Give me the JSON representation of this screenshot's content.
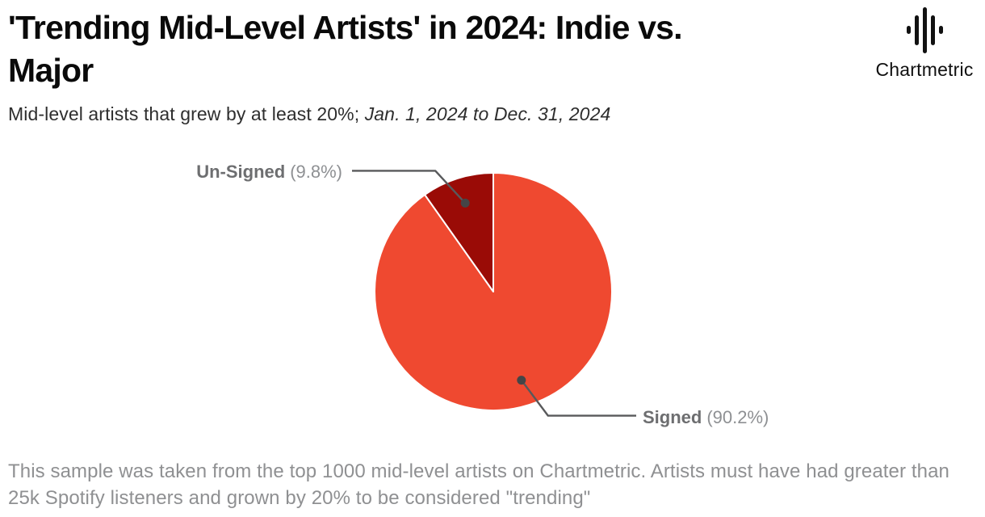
{
  "header": {
    "title_line1": "'Trending Mid-Level Artists' in 2024: Indie vs.",
    "title_line2": "Major",
    "brand": "Chartmetric"
  },
  "subtitle": {
    "plain": "Mid-level artists that grew by at least 20%; ",
    "italic": "Jan. 1, 2024 to Dec. 31, 2024"
  },
  "chart_data": {
    "type": "pie",
    "title": "'Trending Mid-Level Artists' in 2024: Indie vs. Major",
    "subtitle": "Mid-level artists that grew by at least 20%; Jan. 1, 2024 to Dec. 31, 2024",
    "slices": [
      {
        "label": "Signed",
        "value": 90.2,
        "display": "(90.2%)",
        "color": "#EF4930"
      },
      {
        "label": "Un-Signed",
        "value": 9.8,
        "display": "(9.8%)",
        "color": "#9A0B06"
      }
    ],
    "start_angle_deg": 0,
    "direction": "clockwise",
    "slice_border_color": "#FFFFFF",
    "legend_position": "callout-labels",
    "callout_line_color": "#58595B",
    "callout_dot_color": "#454547"
  },
  "footer": {
    "text": "This sample was taken from the top 1000 mid-level artists on Chartmetric. Artists must have had greater than 25k Spotify listeners and grown by 20% to be considered \"trending\""
  }
}
